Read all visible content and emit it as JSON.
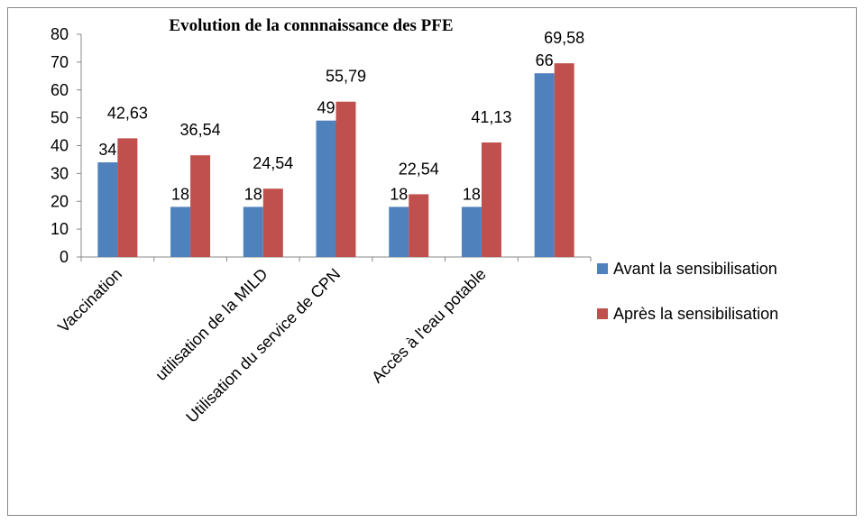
{
  "chart_data": {
    "type": "bar",
    "title": "Evolution de la connnaissance des PFE",
    "categories": [
      "Vaccination",
      null,
      "utilisation de la MILD",
      "Utilisation du service de CPN",
      null,
      "Accès à l'eau potable",
      null
    ],
    "series": [
      {
        "name": "Avant la sensibilisation",
        "color": "#4f81bd",
        "values": [
          34,
          18,
          18,
          49,
          18,
          18,
          66
        ]
      },
      {
        "name": "Après la sensibilisation",
        "color": "#c0504d",
        "values": [
          42.63,
          36.54,
          24.54,
          55.79,
          22.54,
          41.13,
          69.58
        ],
        "value_labels": [
          "42,63",
          "36,54",
          "24,54",
          "55,79",
          "22,54",
          "41,13",
          "69,58"
        ]
      }
    ],
    "ylim": [
      0,
      80
    ],
    "yticks": [
      0,
      10,
      20,
      30,
      40,
      50,
      60,
      70,
      80
    ],
    "grid": false,
    "legend": "right"
  }
}
